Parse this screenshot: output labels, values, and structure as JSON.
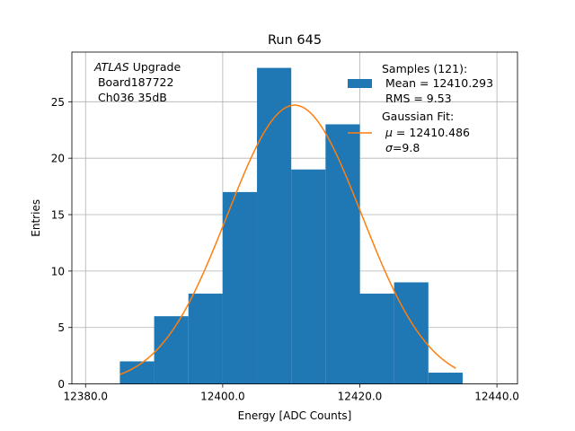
{
  "chart_data": {
    "type": "bar",
    "title": "Run 645",
    "xlabel": "Energy [ADC Counts]",
    "ylabel": "Entries",
    "xlim": [
      12378,
      12443
    ],
    "ylim": [
      0,
      29.4
    ],
    "grid": true,
    "x_ticks": [
      12380,
      12400,
      12420,
      12440
    ],
    "x_tick_labels": [
      "12380.0",
      "12400.0",
      "12420.0",
      "12440.0"
    ],
    "y_ticks": [
      0,
      5,
      10,
      15,
      20,
      25
    ],
    "y_tick_labels": [
      "0",
      "5",
      "10",
      "15",
      "20",
      "25"
    ],
    "histogram": {
      "bin_edges": [
        12385,
        12390,
        12395,
        12400,
        12405,
        12410,
        12415,
        12420,
        12425,
        12430,
        12435
      ],
      "counts": [
        2,
        6,
        8,
        17,
        28,
        19,
        23,
        8,
        9,
        1
      ],
      "color": "#1f77b4"
    },
    "fit": {
      "mu": 12410.486,
      "sigma": 9.8,
      "amplitude": 24.7,
      "x_range": [
        12385,
        12434
      ],
      "color": "#ff7f0e"
    },
    "info_box": {
      "line1_italic": "ATLAS",
      "line1_rest": " Upgrade",
      "line2": " Board187722",
      "line3": " Ch036 35dB"
    },
    "legend": {
      "position": "top-right",
      "samples_title": "Samples (121):",
      "samples_mean": " Mean = 12410.293",
      "samples_rms": " RMS = 9.53",
      "fit_title": "Gaussian Fit:",
      "fit_mu_symbol": "μ",
      "fit_mu_value": " = 12410.486",
      "fit_sigma_symbol": "σ",
      "fit_sigma_value": "=9.8"
    }
  }
}
